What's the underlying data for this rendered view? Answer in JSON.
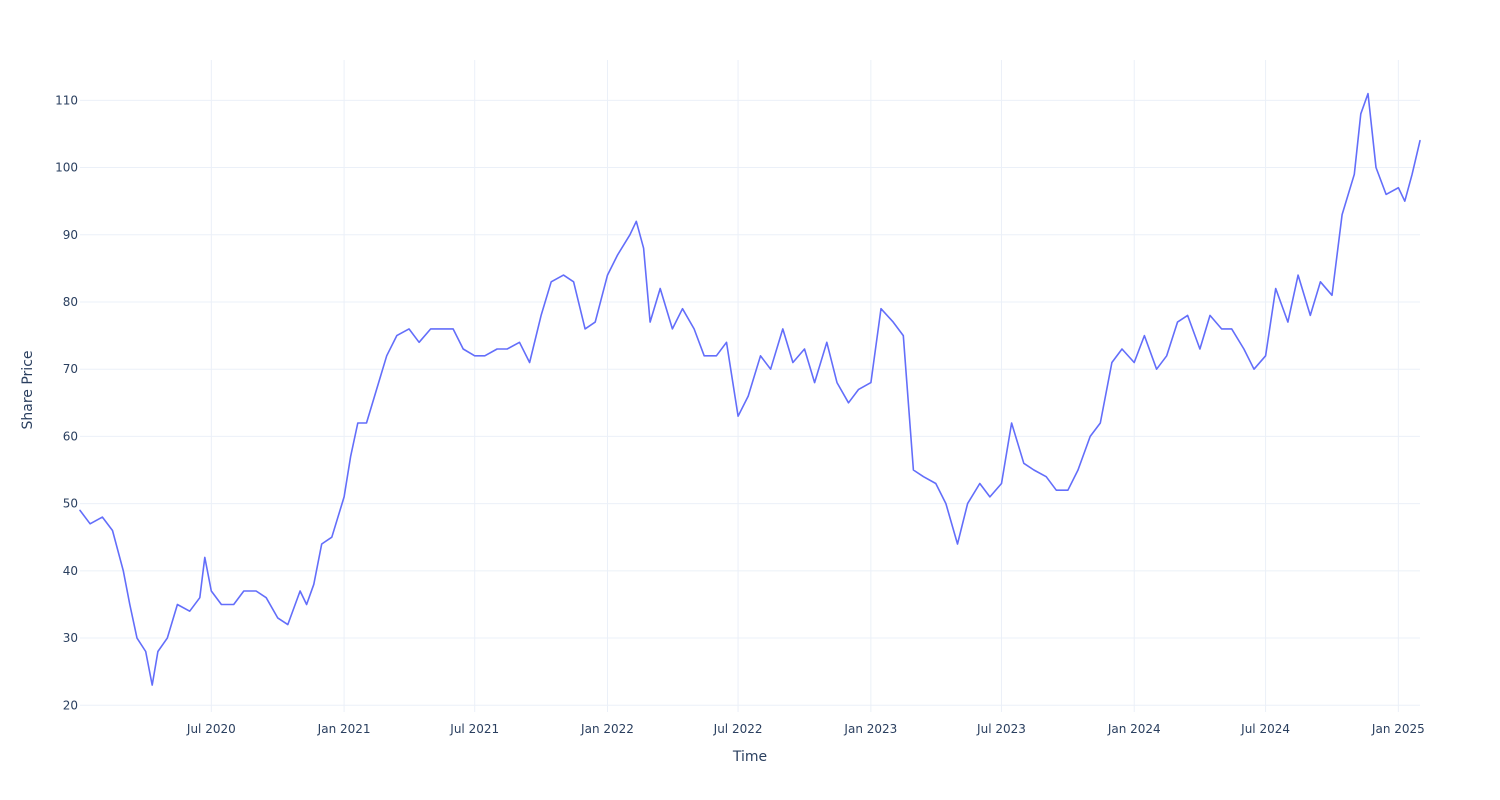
{
  "chart_data": {
    "type": "line",
    "title": "",
    "xlabel": "Time",
    "ylabel": "Share Price",
    "grid": true,
    "legend": "none",
    "line_color": "#636efa",
    "x_range": [
      "2020-01-01",
      "2025-01-31"
    ],
    "y_range": [
      19,
      116
    ],
    "x_ticks": [
      {
        "date": "2020-07-01",
        "label": "Jul 2020"
      },
      {
        "date": "2021-01-01",
        "label": "Jan 2021"
      },
      {
        "date": "2021-07-01",
        "label": "Jul 2021"
      },
      {
        "date": "2022-01-01",
        "label": "Jan 2022"
      },
      {
        "date": "2022-07-01",
        "label": "Jul 2022"
      },
      {
        "date": "2023-01-01",
        "label": "Jan 2023"
      },
      {
        "date": "2023-07-01",
        "label": "Jul 2023"
      },
      {
        "date": "2024-01-01",
        "label": "Jan 2024"
      },
      {
        "date": "2024-07-01",
        "label": "Jul 2024"
      },
      {
        "date": "2025-01-01",
        "label": "Jan 2025"
      }
    ],
    "y_ticks": [
      20,
      30,
      40,
      50,
      60,
      70,
      80,
      90,
      100,
      110
    ],
    "series": [
      {
        "name": "",
        "x": [
          "2020-01-01",
          "2020-01-15",
          "2020-02-01",
          "2020-02-15",
          "2020-03-01",
          "2020-03-10",
          "2020-03-20",
          "2020-04-01",
          "2020-04-10",
          "2020-04-18",
          "2020-05-01",
          "2020-05-15",
          "2020-06-01",
          "2020-06-15",
          "2020-06-22",
          "2020-07-01",
          "2020-07-15",
          "2020-08-01",
          "2020-08-15",
          "2020-09-01",
          "2020-09-15",
          "2020-10-01",
          "2020-10-15",
          "2020-11-01",
          "2020-11-10",
          "2020-11-20",
          "2020-12-01",
          "2020-12-15",
          "2021-01-01",
          "2021-01-10",
          "2021-01-20",
          "2021-02-01",
          "2021-02-15",
          "2021-03-01",
          "2021-03-15",
          "2021-04-01",
          "2021-04-15",
          "2021-05-01",
          "2021-05-15",
          "2021-06-01",
          "2021-06-15",
          "2021-07-01",
          "2021-07-15",
          "2021-08-01",
          "2021-08-15",
          "2021-09-01",
          "2021-09-15",
          "2021-10-01",
          "2021-10-15",
          "2021-11-01",
          "2021-11-15",
          "2021-12-01",
          "2021-12-15",
          "2022-01-01",
          "2022-01-15",
          "2022-02-01",
          "2022-02-10",
          "2022-02-20",
          "2022-03-01",
          "2022-03-15",
          "2022-04-01",
          "2022-04-15",
          "2022-05-01",
          "2022-05-15",
          "2022-06-01",
          "2022-06-15",
          "2022-07-01",
          "2022-07-15",
          "2022-08-01",
          "2022-08-15",
          "2022-09-01",
          "2022-09-15",
          "2022-10-01",
          "2022-10-15",
          "2022-11-01",
          "2022-11-15",
          "2022-12-01",
          "2022-12-15",
          "2023-01-01",
          "2023-01-15",
          "2023-02-01",
          "2023-02-15",
          "2023-03-01",
          "2023-03-15",
          "2023-04-01",
          "2023-04-15",
          "2023-05-01",
          "2023-05-15",
          "2023-06-01",
          "2023-06-15",
          "2023-07-01",
          "2023-07-15",
          "2023-08-01",
          "2023-08-15",
          "2023-09-01",
          "2023-09-15",
          "2023-10-01",
          "2023-10-15",
          "2023-11-01",
          "2023-11-15",
          "2023-12-01",
          "2023-12-15",
          "2024-01-01",
          "2024-01-15",
          "2024-02-01",
          "2024-02-15",
          "2024-03-01",
          "2024-03-15",
          "2024-04-01",
          "2024-04-15",
          "2024-05-01",
          "2024-05-15",
          "2024-06-01",
          "2024-06-15",
          "2024-07-01",
          "2024-07-15",
          "2024-08-01",
          "2024-08-15",
          "2024-09-01",
          "2024-09-15",
          "2024-10-01",
          "2024-10-15",
          "2024-11-01",
          "2024-11-10",
          "2024-11-20",
          "2024-12-01",
          "2024-12-15",
          "2025-01-01",
          "2025-01-10",
          "2025-01-20",
          "2025-01-31"
        ],
        "y": [
          49,
          47,
          48,
          46,
          40,
          35,
          30,
          28,
          23,
          28,
          30,
          35,
          34,
          36,
          42,
          37,
          35,
          35,
          37,
          37,
          36,
          33,
          32,
          37,
          35,
          38,
          44,
          45,
          51,
          57,
          62,
          62,
          67,
          72,
          75,
          76,
          74,
          76,
          76,
          76,
          73,
          72,
          72,
          73,
          73,
          74,
          71,
          78,
          83,
          84,
          83,
          76,
          77,
          84,
          87,
          90,
          92,
          88,
          77,
          82,
          76,
          79,
          76,
          72,
          72,
          74,
          63,
          66,
          72,
          70,
          76,
          71,
          73,
          68,
          74,
          68,
          65,
          67,
          68,
          79,
          77,
          75,
          55,
          54,
          53,
          50,
          44,
          50,
          53,
          51,
          53,
          62,
          56,
          55,
          54,
          52,
          52,
          55,
          60,
          62,
          71,
          73,
          71,
          75,
          70,
          72,
          77,
          78,
          73,
          78,
          76,
          76,
          73,
          70,
          72,
          82,
          77,
          84,
          78,
          83,
          81,
          93,
          99,
          108,
          111,
          100,
          96,
          97,
          95,
          99,
          104
        ]
      }
    ]
  }
}
